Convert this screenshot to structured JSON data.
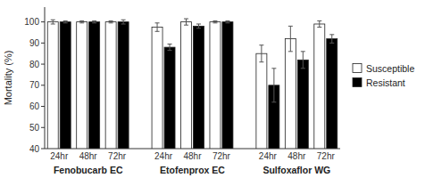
{
  "chart_data": {
    "type": "bar",
    "ylabel": "Mortality (%)",
    "categories": [
      "24hr",
      "48hr",
      "72hr",
      "24hr",
      "48hr",
      "72hr",
      "24hr",
      "48hr",
      "72hr"
    ],
    "category_groups": [
      "Fenobucarb EC",
      "Etofenprox EC",
      "Sulfoxaflor WG"
    ],
    "series": [
      {
        "name": "Susceptible",
        "color": "white",
        "values": [
          100.0,
          100.0,
          100.0,
          97.5,
          100.0,
          100.0,
          85.0,
          92.0,
          99.0
        ],
        "errors": [
          1.0,
          0.5,
          0.5,
          2.0,
          1.5,
          0.5,
          4.0,
          6.0,
          1.5
        ]
      },
      {
        "name": "Resistant",
        "color": "black",
        "values": [
          100.0,
          100.0,
          100.0,
          88.0,
          98.0,
          100.0,
          70.0,
          82.0,
          92.0
        ],
        "errors": [
          0.5,
          0.5,
          1.0,
          1.5,
          1.0,
          0.5,
          8.0,
          4.0,
          2.0
        ]
      }
    ],
    "ylim": [
      40,
      107
    ],
    "yticks": [
      40,
      50,
      60,
      70,
      80,
      90,
      100
    ],
    "grid": false,
    "legend": "right"
  }
}
